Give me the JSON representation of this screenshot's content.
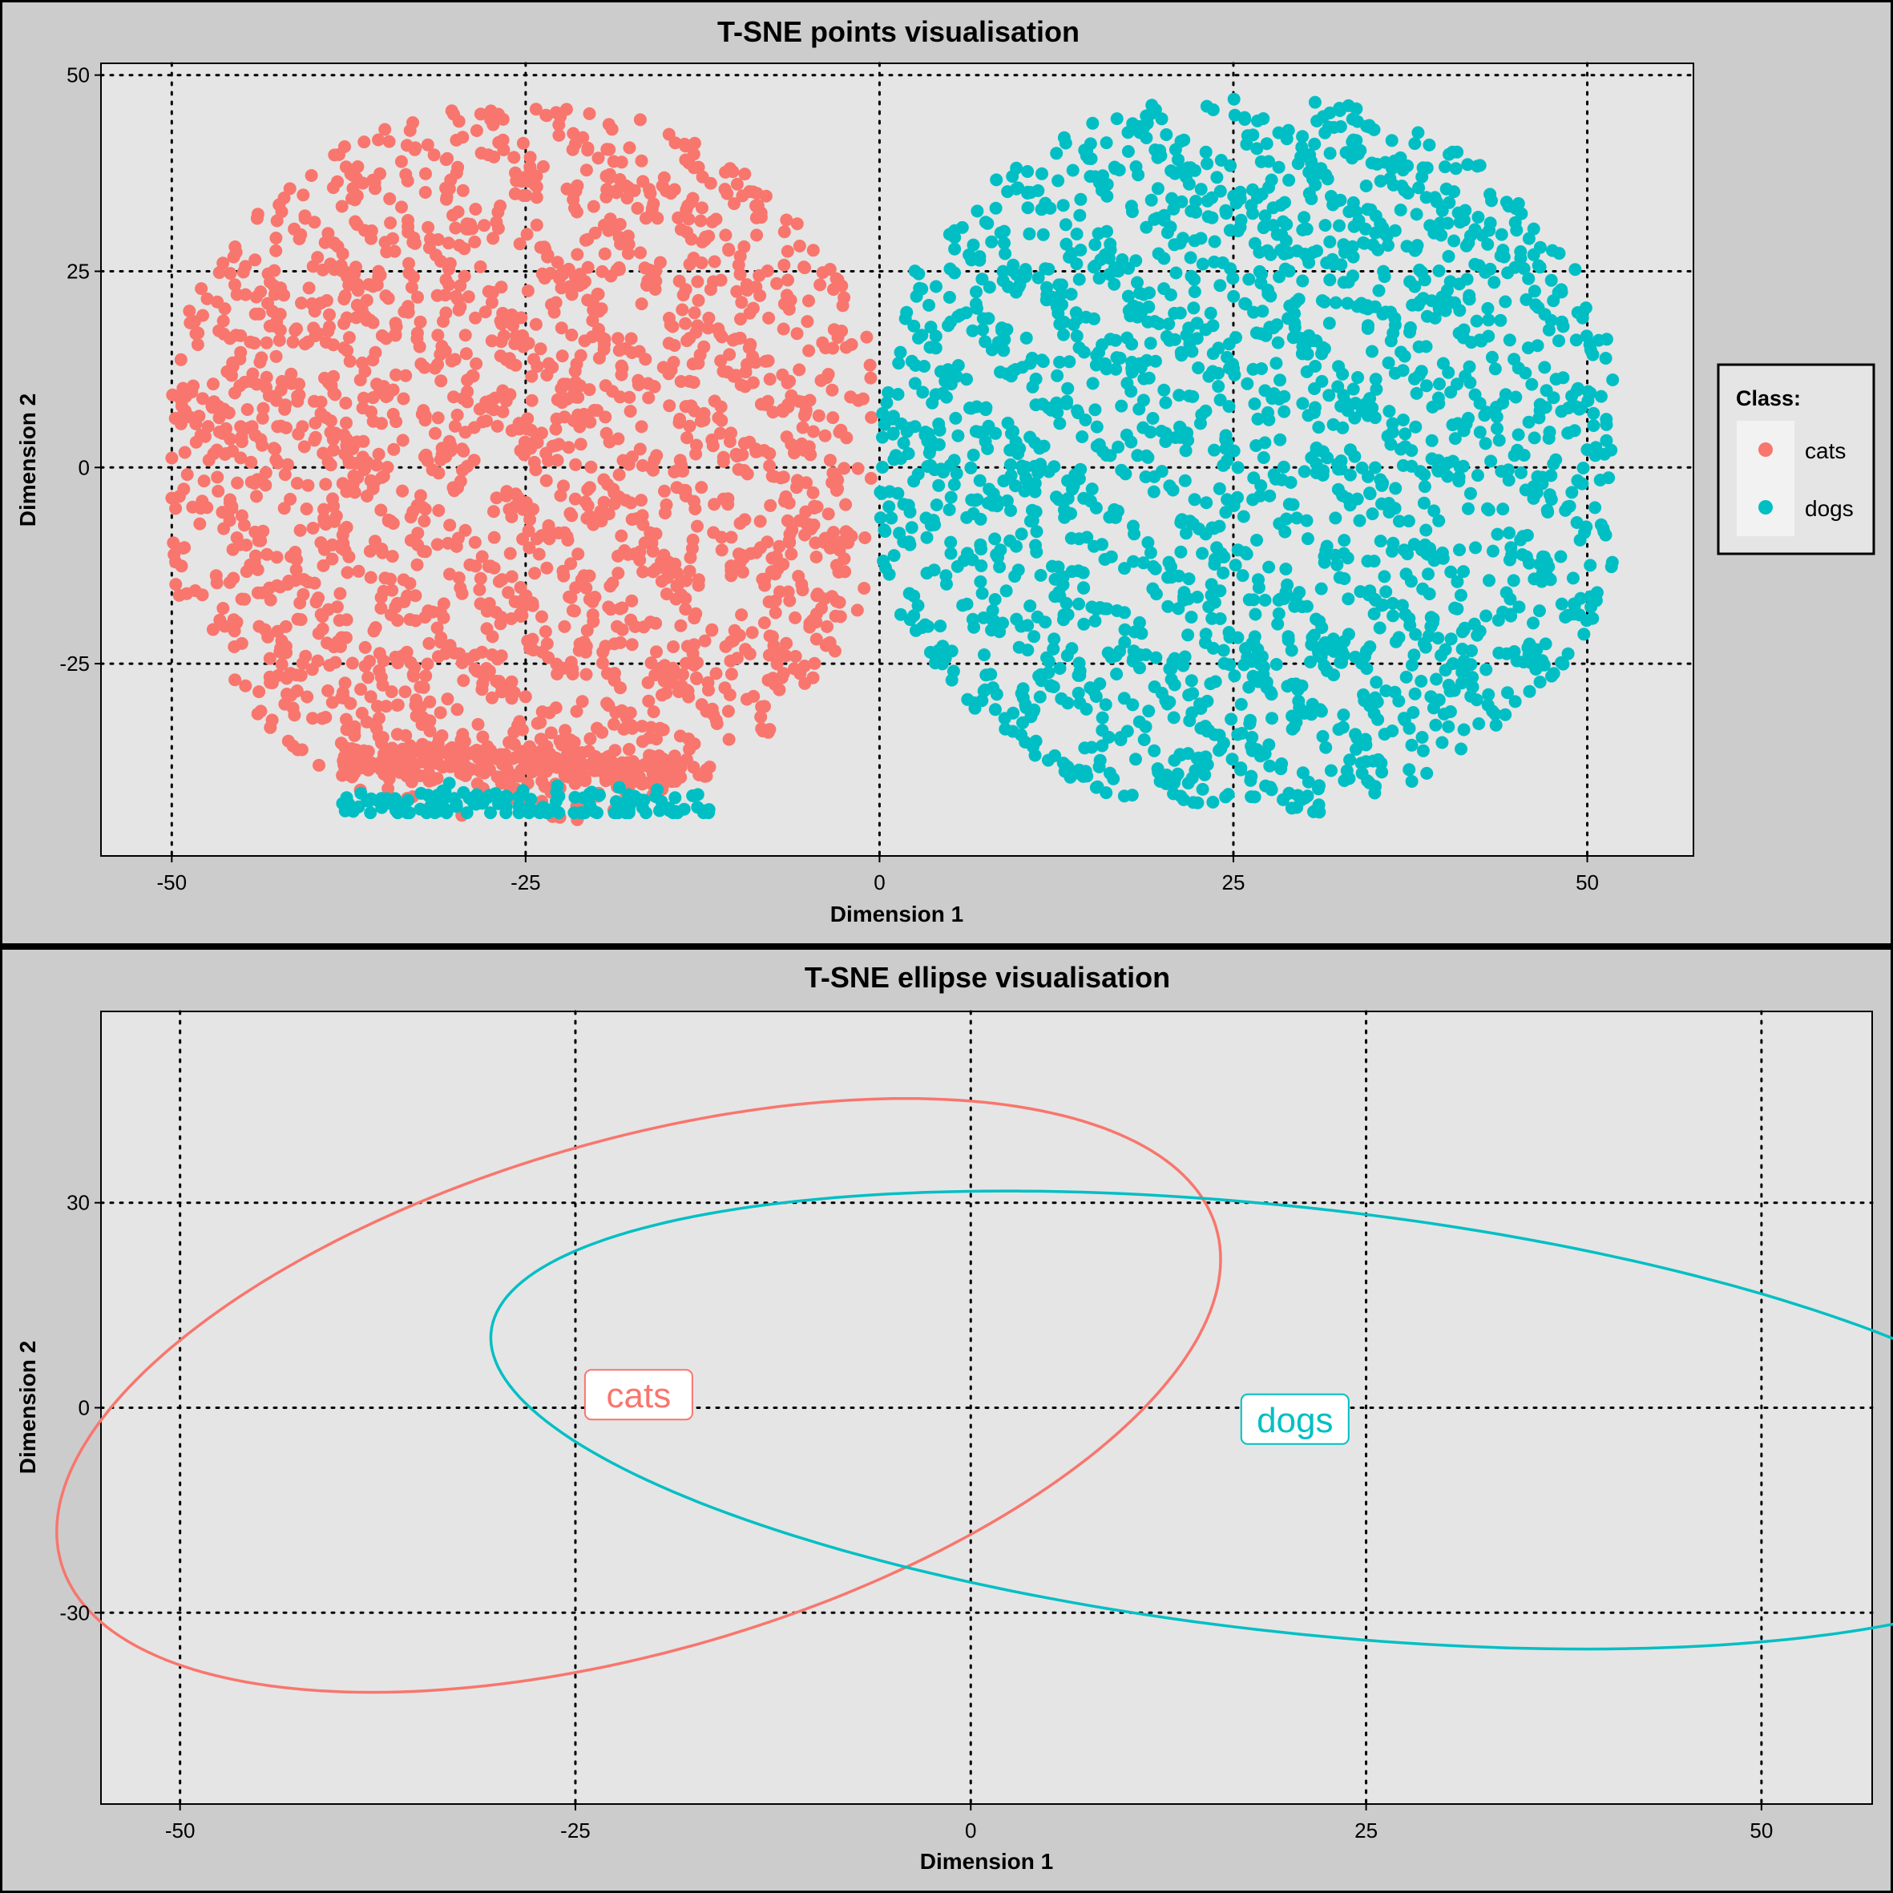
{
  "chart_data": [
    {
      "type": "scatter",
      "title": "T-SNE points visualisation",
      "xlabel": "Dimension 1",
      "ylabel": "Dimension 2",
      "xlim": [
        -55,
        57.5
      ],
      "ylim": [
        -49.5,
        51.5
      ],
      "xticks": [
        -50,
        -25,
        0,
        25,
        50
      ],
      "yticks": [
        50,
        25,
        0,
        -25
      ],
      "grid": true,
      "legend": {
        "title": "Class:",
        "placement": "right",
        "entries": [
          {
            "name": "cats",
            "color": "#F8766D"
          },
          {
            "name": "dogs",
            "color": "#00BFC4"
          }
        ]
      },
      "series": [
        {
          "name": "cats",
          "color": "#F8766D",
          "region": {
            "center": [
              -22,
              3
            ],
            "x_extent": [
              -50,
              -0.5
            ],
            "y_extent": [
              -45,
              46
            ]
          },
          "tail": {
            "x_range": [
              -38,
              -14
            ],
            "y_range": [
              -45,
              -34
            ]
          },
          "approx_count": 2300
        },
        {
          "name": "dogs",
          "color": "#00BFC4",
          "region": {
            "center": [
              25,
              -5
            ],
            "x_extent": [
              0,
              52
            ],
            "y_extent": [
              -44,
              47
            ]
          },
          "tail": {
            "x_range": [
              -38,
              -12
            ],
            "y_range": [
              -44,
              -37
            ]
          },
          "approx_count": 2300
        }
      ]
    },
    {
      "type": "line",
      "subtype": "ellipse",
      "title": "T-SNE ellipse visualisation",
      "xlabel": "Dimension 1",
      "ylabel": "Dimension 2",
      "xlim": [
        -55,
        57
      ],
      "ylim": [
        -58,
        58
      ],
      "xticks": [
        -50,
        -25,
        0,
        25,
        50
      ],
      "yticks": [
        30,
        0,
        -30
      ],
      "grid": true,
      "series": [
        {
          "name": "cats",
          "color": "#F8766D",
          "label_position": [
            -21,
            1.8
          ],
          "ellipse": {
            "center": [
              -21,
              1.8
            ],
            "rx": 29,
            "ry": 49,
            "rotation_deg": -35
          }
        },
        {
          "name": "dogs",
          "color": "#00BFC4",
          "label_position": [
            20.5,
            -1.8
          ],
          "ellipse": {
            "center": [
              20.5,
              -1.8
            ],
            "rx": 30,
            "ry": 53,
            "rotation_deg": 70
          }
        }
      ]
    }
  ]
}
